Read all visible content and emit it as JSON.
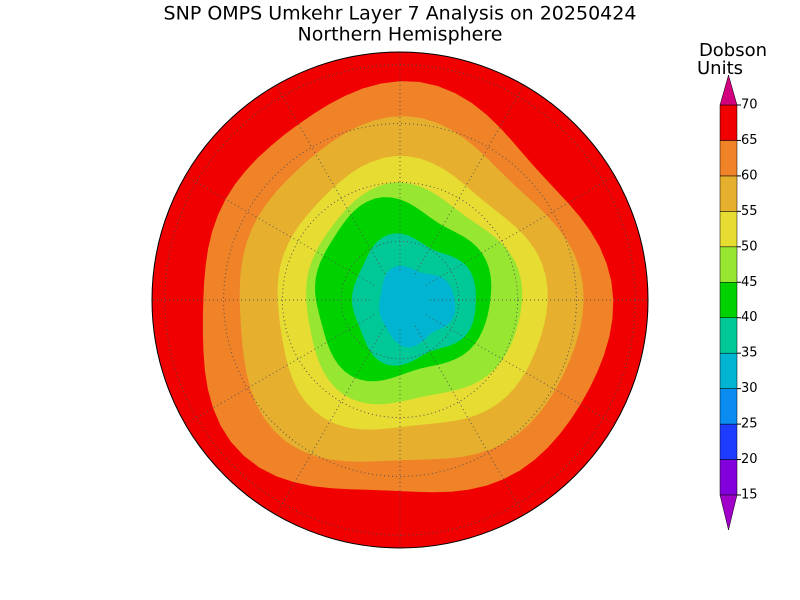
{
  "title": "SNP OMPS Umkehr Layer 7 Analysis on 20250424",
  "subtitle": "Northern Hemisphere",
  "colorbar": {
    "label_lines": [
      "Dobson",
      "Units"
    ],
    "ticks": [
      15,
      20,
      25,
      30,
      35,
      40,
      45,
      50,
      55,
      60,
      65,
      70
    ],
    "below_color": "#a000c8",
    "above_color": "#d2007d",
    "colors": [
      "#8200dc",
      "#1e3cff",
      "#0a8cf0",
      "#00b4d2",
      "#00c896",
      "#00d200",
      "#96e632",
      "#e6dc32",
      "#e6af2d",
      "#f08228",
      "#f00000"
    ]
  }
}
